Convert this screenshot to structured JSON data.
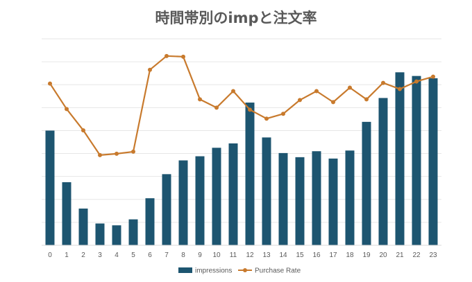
{
  "chart_data": {
    "type": "bar",
    "title": "時間帯別のimpと注文率",
    "categories": [
      "0",
      "1",
      "2",
      "3",
      "4",
      "5",
      "6",
      "7",
      "8",
      "9",
      "10",
      "11",
      "12",
      "13",
      "14",
      "15",
      "16",
      "17",
      "18",
      "19",
      "20",
      "21",
      "22",
      "23"
    ],
    "series": [
      {
        "name": "impressions",
        "type": "bar",
        "axis": "left",
        "color": "#1d5570",
        "values": [
          5000,
          2750,
          1600,
          950,
          870,
          1130,
          2050,
          3100,
          3700,
          3880,
          4250,
          4440,
          6220,
          4700,
          4020,
          3840,
          4100,
          3780,
          4130,
          5380,
          6420,
          7540,
          7380,
          7280
        ]
      },
      {
        "name": "Purchase Rate",
        "type": "line",
        "axis": "right",
        "color": "#c87a2d",
        "values": [
          0.0235,
          0.0198,
          0.0167,
          0.0131,
          0.0133,
          0.0136,
          0.0255,
          0.0275,
          0.0274,
          0.0212,
          0.02,
          0.0224,
          0.0197,
          0.0184,
          0.0191,
          0.0211,
          0.0224,
          0.0208,
          0.0229,
          0.0212,
          0.0236,
          0.0227,
          0.0238,
          0.0245
        ]
      }
    ],
    "ylim_left": [
      0,
      9000
    ],
    "ylim_right": [
      0,
      0.03
    ],
    "grid": true,
    "legend": "bottom-center",
    "axis_text_color": "#595959",
    "grid_color": "#e6e6e6"
  }
}
